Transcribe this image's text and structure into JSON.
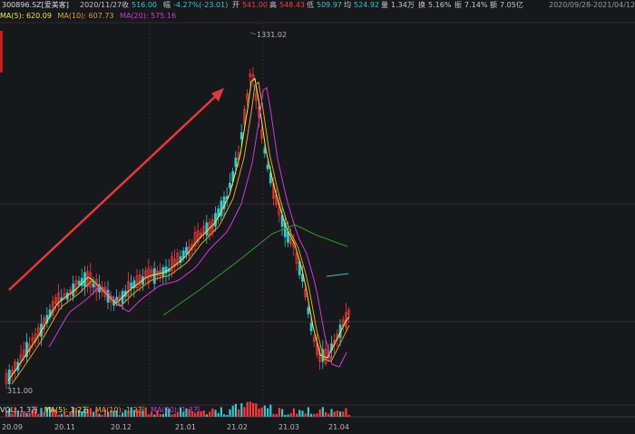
{
  "header": {
    "symbol": "300896.SZ[爱美客]",
    "date": "2020/11/27",
    "close_label": "收",
    "close": "516.00",
    "change_label": "幅",
    "change": "-4.27%(-23.01)",
    "open_label": "开",
    "open": "541.00",
    "high_label": "高",
    "high": "548.43",
    "low_label": "低",
    "low": "509.97",
    "avg_label": "均",
    "avg": "524.92",
    "vol_label": "量",
    "volume": "1.34万",
    "turn_label": "换",
    "turnover": "5.16%",
    "amp_label": "振",
    "amplitude": "7.14%",
    "amt_label": "额",
    "amount": "7.05亿",
    "range": "2020/09/28-2021/04/12"
  },
  "ma_legend": {
    "ma5": "MA(5): 620.09",
    "ma10": "MA(10): 607.73",
    "ma20": "MA(20): 575.16"
  },
  "vol_legend": {
    "vol": "VOL: 1.3万",
    "ma5": "MA(5): 1.2万",
    "ma10": "MA(10): 1.2万",
    "ma20": "MA(20): 1.3万"
  },
  "colors": {
    "up": "#ff3b3b",
    "down": "#34c7d0",
    "ma5": "#e8e84a",
    "ma10": "#e0a13a",
    "ma20": "#d23ad2",
    "ma60": "#2e9e2e",
    "arrow": "#e23a3a",
    "grid": "#2c2d33"
  },
  "chart_data": {
    "type": "candlestick",
    "series": [
      {
        "name": "MA(5)"
      },
      {
        "name": "MA(10)"
      },
      {
        "name": "MA(20)"
      }
    ],
    "max_label": "1331.02",
    "min_label": "311.00",
    "x_labels": [
      "20.09",
      "20.11",
      "20.12",
      "21.01",
      "21.02",
      "21.03",
      "21.04"
    ]
  }
}
